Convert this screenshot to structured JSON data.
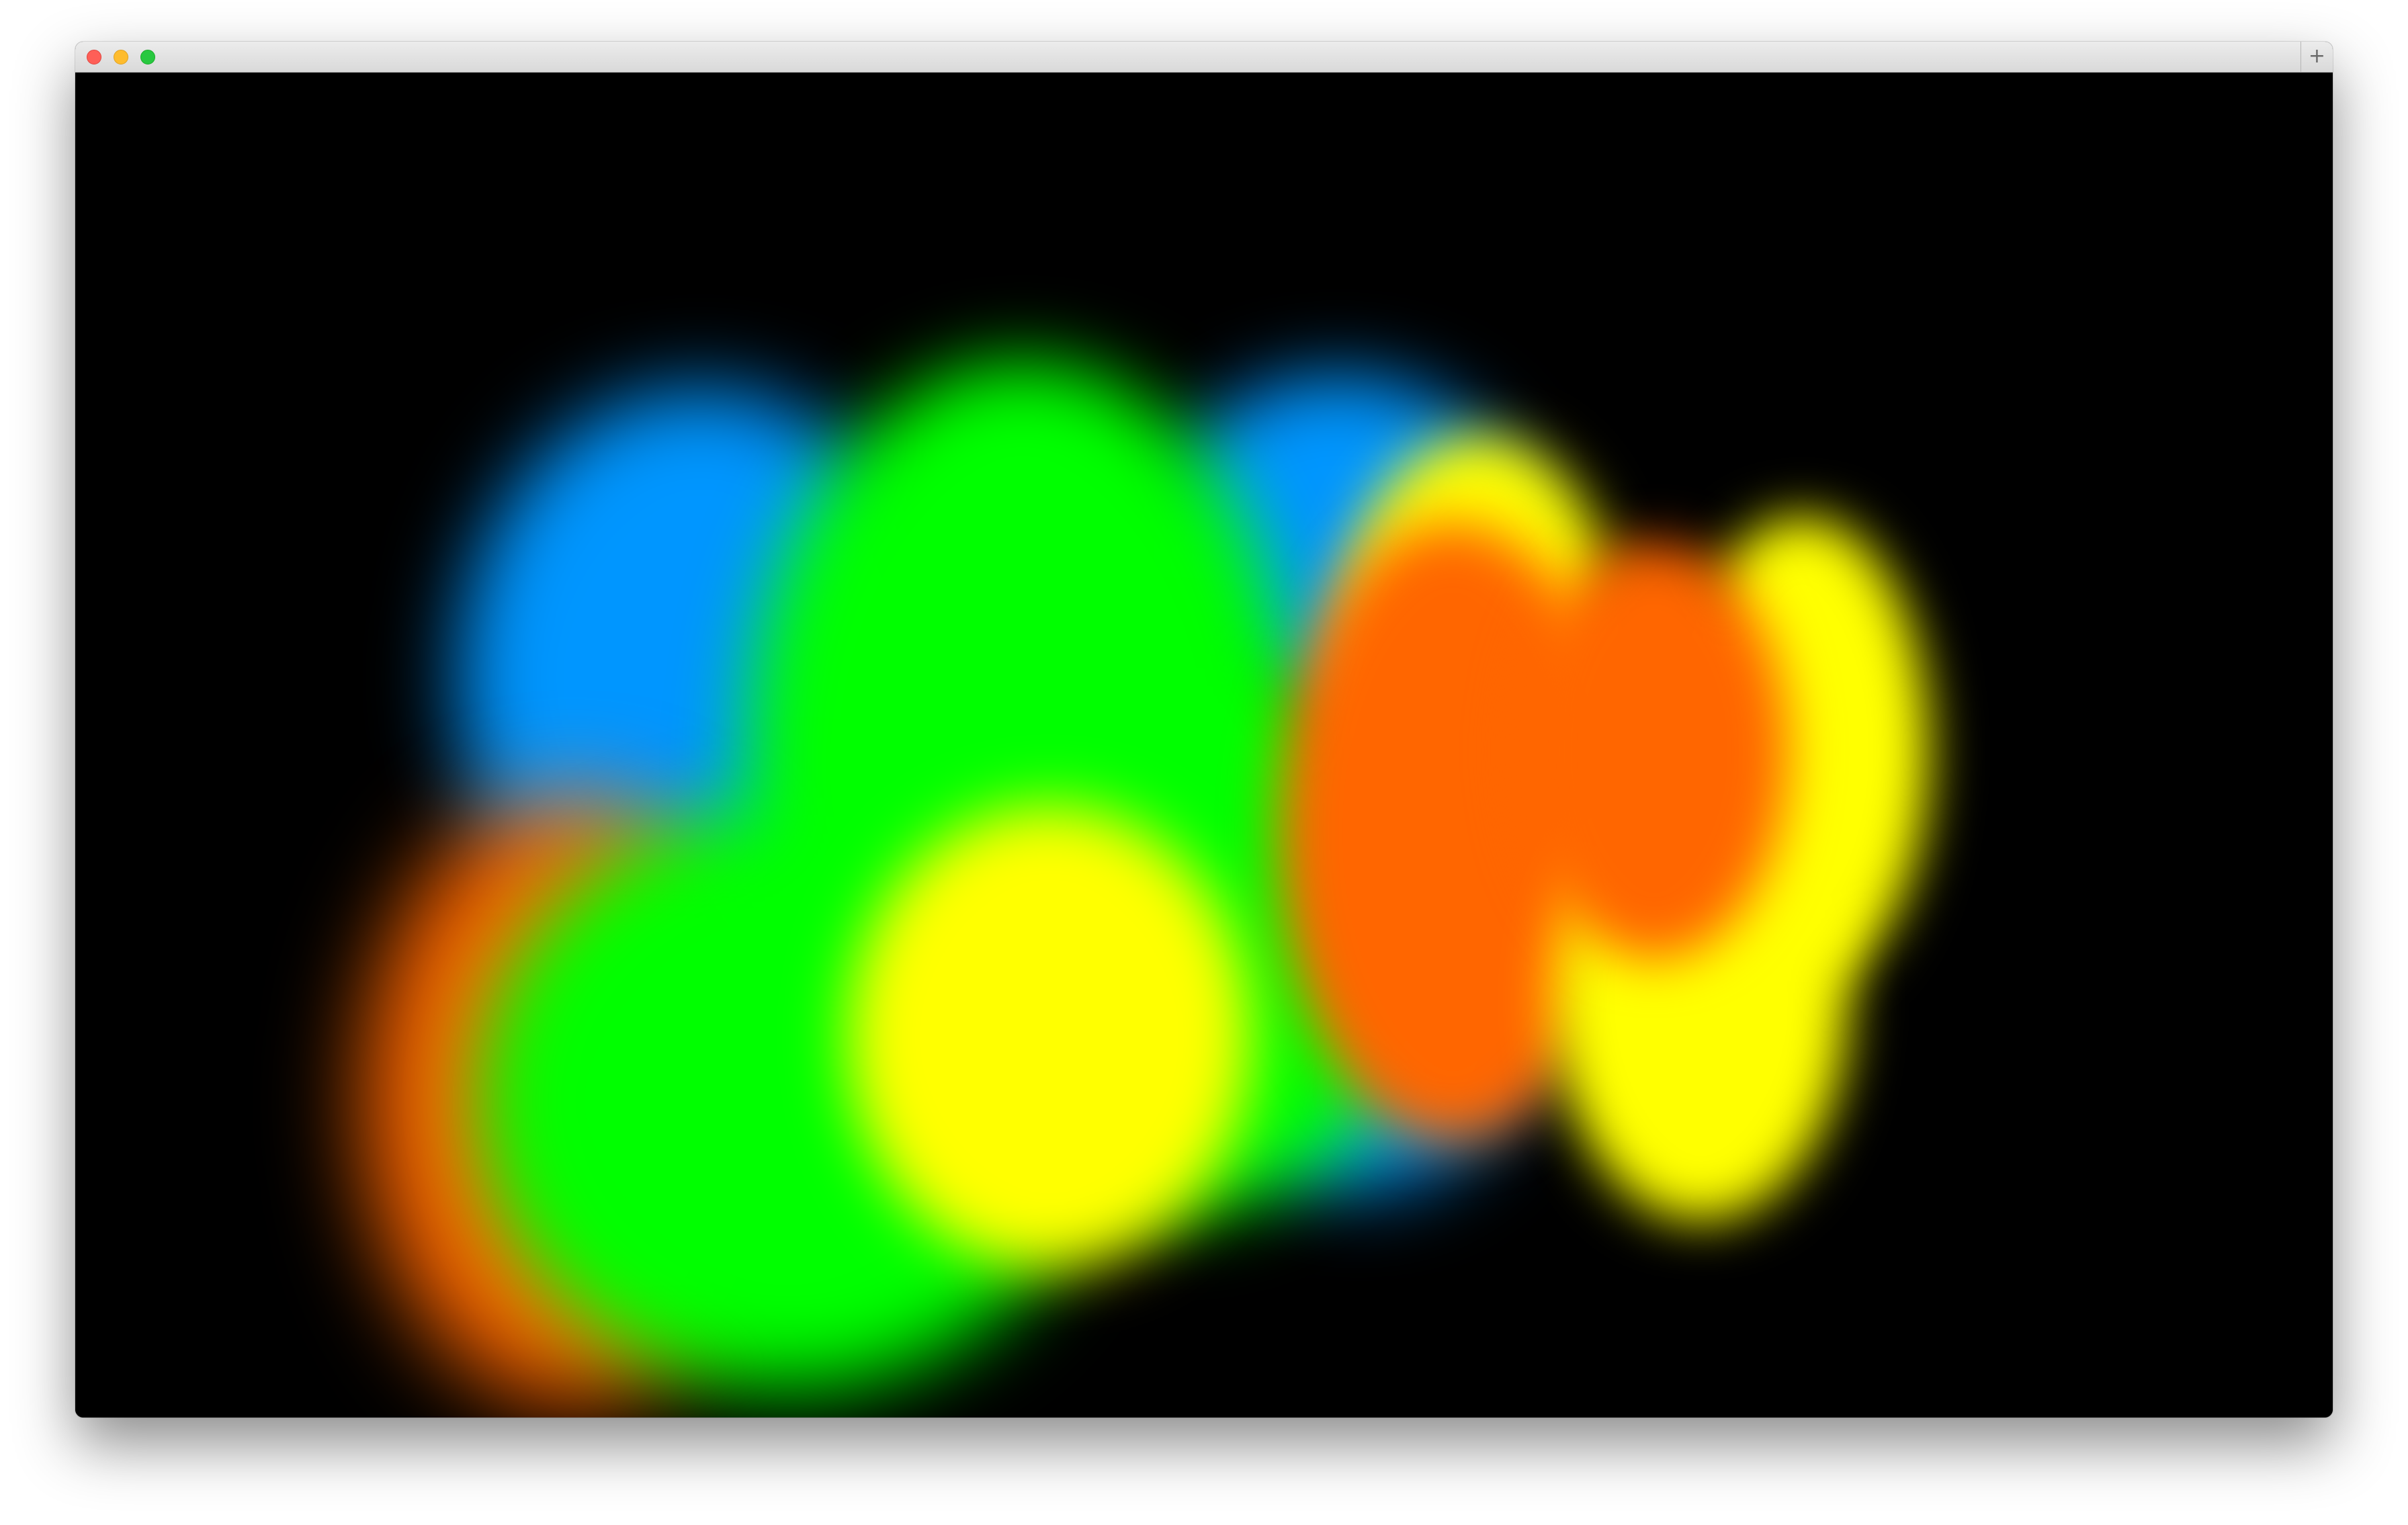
{
  "window": {
    "titlebar": {
      "buttons": {
        "close_icon": "close-icon",
        "minimize_icon": "minimize-icon",
        "maximize_icon": "maximize-icon"
      },
      "new_tab_label": "+"
    }
  },
  "canvas": {
    "background_color": "#000000",
    "palette": {
      "blue": "#0096ff",
      "green": "#00ff00",
      "yellow": "#ffff00",
      "orange": "#ff6600"
    }
  }
}
